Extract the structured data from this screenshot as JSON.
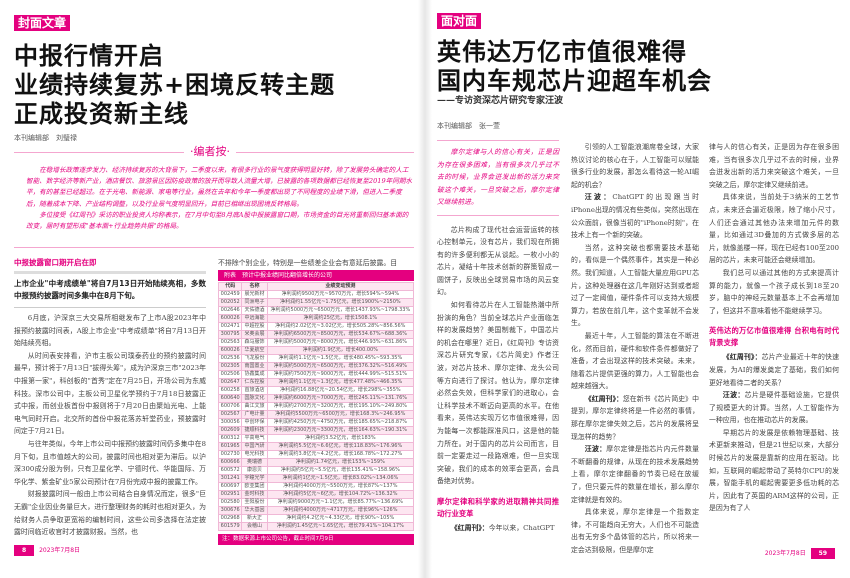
{
  "left": {
    "tag": "封面文章",
    "title": [
      "中报行情开启",
      "业绩持续复苏+困境反转主题",
      "正成投资新主线"
    ],
    "author": "本刊编辑部　刘璧禄",
    "note": {
      "heading": "·编者按·",
      "paragraphs": [
        "在稳增长政策逐步发力、经济持续复苏的大背景下，二季度以来，有很多行业的景气度获得明显好转，除了发展势头确定的人工智能、数字经济等新产业，酒店餐饮、旅游景区因防疫政策的放开而导致人流量大增，已披露的各项数据都已经恢复至2019年同期水平，有的甚至已经超过。在于光电、新能源、家电等行业，虽然在去年和今年一季度都出现了不同程度的业绩下滑，但进入二季度后，随着成本下降、产业结构调整，以及行业景气度明显回升，目前已相继出现困境反转格局。",
        "多位接受《红周刊》采访的职业投资人均称表示，在7月中旬至8月底A股中报披露窗口期，市场资金的目光将重新回归基本面的改变，届时有望形成\"基本面+行业趋势共振\"的格局。"
      ]
    },
    "section_heading": "中报披露窗口期开启在即",
    "lead": "上市企业\"中考成绩单\"将自7月13日开始陆续亮相，多数中报预约披露时间多集中在8月下旬。",
    "col1": [
      "6月底，沪深京三大交易所相继发布了上市A股2023年中报预约披露时间表，A股上市企业\"中考成绩单\"将自7月13日开始陆续亮相。",
      "从时间表安排看，沪市主板公司璞泰药业的预约披露时间最早，预计将于7月13日\"拔得头筹\"，成为沪深京三市\"2023年中报第一家\"，科创板的\"首秀\"定在7月25日，开场公司为东威科技。深市公司中，主板公司卫星化学预约于7月18日披露正式中报，而创业板首份中报则将于7月20日由聚灿光电、上能电气同时开启。北交所的首份中报花落苏轩堂药业，预披露时间定于7月21日。",
      "与往年类似，今年上市公司中报预约披露时间仍多集中在8月下旬，且市值越大的公司，披露时间也相对更为滞后。以沪深300成分股为例，只有卫星化学、宁德时代、华能国际、万华化学、紫金矿业5家公司预计在7月份完成中报的披露工作。",
      "财报披露时间一般由上市公司结合自身情况而定，很多\"巨无霸\"企业因业务量巨大，进行整理财务的耗时也相对更久，为给财务人员争取更宽裕的编制时间，这些公司多选择在法定披露时间临近收官时才披露财报。当然，也"
    ],
    "col2_top": "不排除个别企业，特别是一些绩差企业会有意延后披露。目",
    "table": {
      "caption": "附表　预计中报业绩同比翻倍增长的公司",
      "columns": [
        "代码",
        "名称",
        "业绩变动预测"
      ],
      "rows": [
        [
          "002459",
          "晨光新材",
          "净利润约9500万元~9570万元，增长594%~594%"
        ],
        [
          "002052",
          "同洲电子",
          "净利润约1.55亿元~1.75亿元，增长1900%~2150%"
        ],
        [
          "002646",
          "天佑德酒",
          "净利润约5000万元~6500万元，增长1437.93%~1798.33%"
        ],
        [
          "600026",
          "中远海能",
          "净利润约25亿元，增长1508.1%"
        ],
        [
          "002471",
          "中超控股",
          "净利润约2.02亿元~3.02亿元，增长505.28%~856.56%"
        ],
        [
          "300795",
          "米奥会展",
          "净利润约6500万元~8500万元，增长534.67%~688.36%"
        ],
        [
          "002563",
          "森马服饰",
          "净利润约5000万元~8000万元，增长446.93%~631.86%"
        ],
        [
          "600026",
          "华夏航空",
          "净利润约1.9亿元，增长400.00%"
        ],
        [
          "002536",
          "飞龙股份",
          "净利润约1.1亿元~1.5亿元，增长480.45%~593.35%"
        ],
        [
          "002305",
          "南国置业",
          "净利润约5000万元~6500万元，增长376.32%~516.49%"
        ],
        [
          "002506",
          "协鑫集成",
          "净利润约7500万元~9000万元，增长444.99%~515.51%"
        ],
        [
          "002647",
          "仁东控股",
          "净利润约1.1亿元~1.3亿元，增长477.48%~466.35%"
        ],
        [
          "600258",
          "首旅酒店",
          "净利润约16.88亿元~20.54亿元，增长298%~355%"
        ],
        [
          "600640",
          "国脉文化",
          "净利润约6000万元~7000万元，增长245.11%~131.76%"
        ],
        [
          "600706",
          "曲江文旅",
          "净利润约2700万元~3200万元，增长195.10%~249.80%"
        ],
        [
          "002567",
          "广电计量",
          "净利润约5500万元~6500万元，增长168.3%~246.95%"
        ],
        [
          "300056",
          "中创环保",
          "净利润约4250万元~4750万元，增长185.65%~218.87%"
        ],
        [
          "002609",
          "捷顺科技",
          "净利润约2300万元~3300万元，增长164.63%~190.31%"
        ],
        [
          "600312",
          "平高电气",
          "净利润约3.52亿元，增长183%"
        ],
        [
          "601965",
          "中国汽研",
          "净利润约5.5亿元~6.6亿元，增长118.83%~176.96%"
        ],
        [
          "002730",
          "电光科技",
          "净利润约3.8亿元~4.2亿元，增长168.78%~172.27%"
        ],
        [
          "600666",
          "奥瑞德",
          "净利润约1.74亿元，增长153%~159%"
        ],
        [
          "600572",
          "康恩贝",
          "净利润约5亿元~5.5亿元，增长135.41%~158.96%"
        ],
        [
          "301241",
          "宇瞳光学",
          "净利润约1亿元~1.5亿元，增长83.02%~134.06%"
        ],
        [
          "600697",
          "欧亚集团",
          "净利润约4000万元~5500万元，增长87%~137%"
        ],
        [
          "002951",
          "金时科技",
          "净利润约5亿元~6亿元，增长104.72%~136.32%"
        ],
        [
          "002580",
          "圣阳股份",
          "净利润约9000万元~1.1亿元，增长85.77%~136.69%"
        ],
        [
          "300676",
          "华大基因",
          "净利润约4000万元~4717万元，增长96%~126%"
        ],
        [
          "002968",
          "新大正",
          "净利润约4.2亿元~4.33亿元，增长90%~105%"
        ],
        [
          "601579",
          "会稽山",
          "净利润约1.45亿元~1.65亿元，增长79.41%~104.17%"
        ]
      ],
      "footnote": "注：数据来源上市公司公告，截止时间7月9日"
    },
    "page_number": "8",
    "page_footer": "2023年7月8日"
  },
  "right": {
    "tag": "面对面",
    "title": [
      "英伟达万亿市值很难得",
      "国内车规芯片迎超车机会"
    ],
    "subtitle": "——专访资深芯片研究专家汪波",
    "author": "本刊编辑部　张一萱",
    "quote": "摩尔定律与人的信心有关，正是因为存在很多困难，当有很多次几乎过不去的时候，业界会迸发出新的活力来突破这个难关，一旦突破之后，摩尔定律又继续前进。",
    "col1": [
      {
        "t": "芯片构成了现代社会运营运转的核心控制单元，没有芯片，我们现在所拥有的许多便利都无从谈起。一枚小小的芯片，凝结十年技术创新的群策智成一圆饼子，反映出全球贸易市场的风云变幻。"
      },
      {
        "t": "如何看待芯片在人工智能热潮中所扮演的角色？当前全球芯片产业面临怎样的发展趋势？美国制裁下，中国芯片的机会在哪里？近日，《红周刊》专访资深芯片研究专家，《芯片简史》作者汪波，对芯片技术、摩尔定律、龙头公司等方向进行了探讨。他认为，摩尔定律必然会失效，但科学家们的进取心，会让科学技术不断迈向更高的水平。在他看来，英伟达实现万亿市值很难得，因为能每一次都能踩准风口，这是他的能力所在。对于国内的芯片公司而言，目前一定要走过一段路艰难，但一旦实现突破，我们的成本的效率会更高，会具备绝对优势。"
      },
      {
        "sec": "摩尔定律和科学家的进取精神共同推动行业变革"
      },
      {
        "q": "《红周刊》：",
        "t": "今年以来，ChatGPT"
      }
    ],
    "col2": [
      {
        "t": "引领的人工智能浪潮席卷全球，大家热议讨论的核心在于，人工智能可以赋能很多行业的发展，那怎么看待这一轮AI崛起的机会？"
      },
      {
        "q": "汪波：",
        "t": "ChatGPT的出现跟当时iPhone出现的情况有些类似，突然出现在公众面前，很像当初的\"iPhone时刻\"，在技术上有一个新的突破。"
      },
      {
        "t": "当然，这种突破也都需要技术基础的，看似是一个偶然事件，其实是一种必然。我们知道，人工智能大量应用GPU芯片，这种处理器在这几年刚好达到或者超过了一定阈值，硬件条件可以支持大规模算力，若放在前几年，这个变革就不会发生。"
      },
      {
        "t": "最近十年，人工智能的算法在不断进化，然而目前，硬件和软件条件都做好了准备，才会出现这样的技术突破。未来，随着芯片提供更强的算力，人工智能也会越来越强大。"
      },
      {
        "q": "《红周刊》：",
        "t": "您在新书《芯片简史》中提到，摩尔定律终将是一件必然的事情，那在摩尔定律失效之后，芯片的发展将呈现怎样的趋势？"
      },
      {
        "q": "汪波：",
        "t": "摩尔定律是指芯片内元件数量不断翻番的规律，从现在的技术发展趋势上看，摩尔定律翻番的节奏已经在放缓了，但只要元件的数量在增长，那么摩尔定律就是有效的。"
      },
      {
        "t": "具体来说，摩尔定律是一个指数定律，不可能趋向无穷大，人们也不可能造出有无穷多个晶体管的芯片，所以将来一定会达到极限，但是摩尔定"
      }
    ],
    "col3": [
      {
        "t": "律与人的信心有关，正是因为存在很多困难，当有很多次几乎过不去的时候，业界会迸发出新的活力来突破这个难关，一旦突破之后，摩尔定律又继续前进。",
        "noindent": true
      },
      {
        "t": "具体来说，当前处于3纳米的工艺节点，未来还会逼近极限，除了缩小尺寸，人们还会通过其他办法来增加元件的数量，比如通过3D叠加的方式做多层的芯片，就像盖楼一样，现在已经有100至200层的芯片，未来可能还会继续增加。"
      },
      {
        "t": "我们总可以通过其他的方式来提高计算的能力，就像一个孩子成长到18至20岁，脑中的神经元数量基本上不会再增加了，但这并不意味着他不能继续学习。"
      },
      {
        "sec": "英伟达的万亿市值很难得 台积电有时代背景支撑"
      },
      {
        "q": "《红周刊》：",
        "t": "芯片产业最近十年的快速发展，为AI的爆发奠定了基础，我们如何更好地看待二者的关系？"
      },
      {
        "q": "汪波：",
        "t": "芯片是硬件基础设施，它提供了规模更大的计算。当然，人工智能作为一种应用，也在推动芯片的发展。"
      },
      {
        "t": "早期芯片的发展是依赖物理基础、技术更新来推动，但是21世纪以来，大部分时候芯片的发展是靠新的应用在驱动。比如，互联网的崛起带动了英特尔CPU的发展，智能手机的崛起需要更多低功耗的芯片，因此有了英国的ARM这样的公司，正是因为有了人"
      }
    ],
    "page_footer": "2023年7月8日",
    "page_number": "59"
  },
  "colors": {
    "accent": "#e4007f",
    "note_rule": "#f4a6cf"
  }
}
